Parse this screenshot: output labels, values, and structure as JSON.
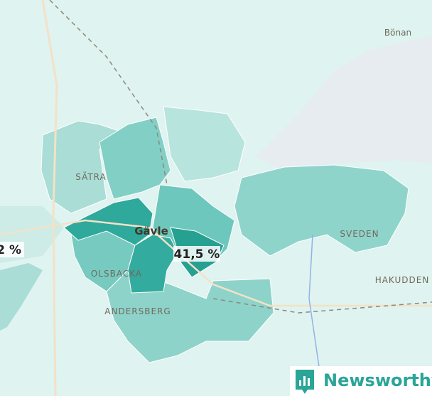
{
  "map": {
    "places": [
      "Bönan",
      "SÄTRA",
      "Gävle",
      "SVEDEN",
      "HAKUDDEN",
      "OLSBACKA",
      "ANDERSBERG"
    ],
    "value_labels": [
      "41,5 %",
      "2 %"
    ]
  },
  "logo": {
    "text": "Newsworthy"
  }
}
